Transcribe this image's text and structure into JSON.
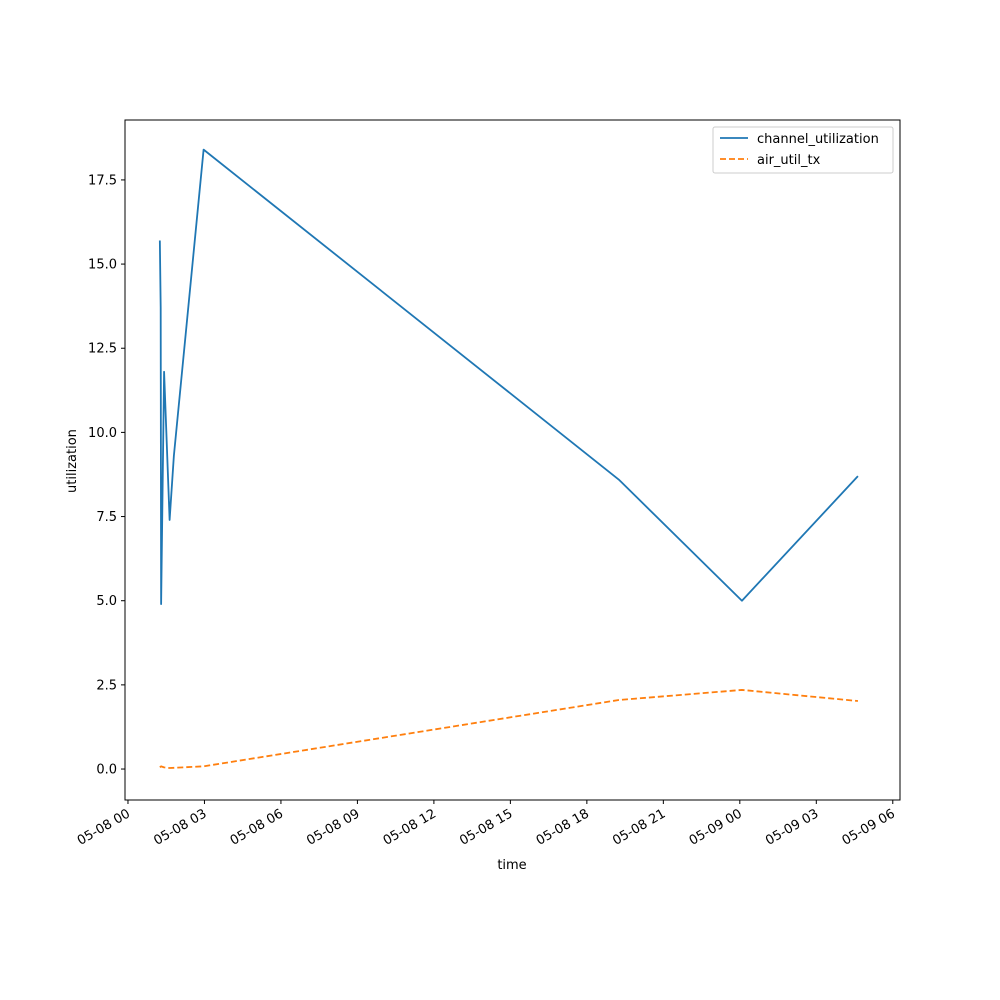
{
  "chart_data": {
    "type": "line",
    "title": "",
    "xlabel": "time",
    "ylabel": "utilization",
    "grid": false,
    "legend_position": "top-right",
    "xlim": [
      "2025-05-07T23:53:00",
      "2025-05-09T06:17:00"
    ],
    "ylim": [
      -0.92,
      19.28
    ],
    "x_ticks": [
      {
        "t": "2025-05-08T00:00",
        "label": "05-08 00"
      },
      {
        "t": "2025-05-08T03:00",
        "label": "05-08 03"
      },
      {
        "t": "2025-05-08T06:00",
        "label": "05-08 06"
      },
      {
        "t": "2025-05-08T09:00",
        "label": "05-08 09"
      },
      {
        "t": "2025-05-08T12:00",
        "label": "05-08 12"
      },
      {
        "t": "2025-05-08T15:00",
        "label": "05-08 15"
      },
      {
        "t": "2025-05-08T18:00",
        "label": "05-08 18"
      },
      {
        "t": "2025-05-08T21:00",
        "label": "05-08 21"
      },
      {
        "t": "2025-05-09T00:00",
        "label": "05-09 00"
      },
      {
        "t": "2025-05-09T03:00",
        "label": "05-09 03"
      },
      {
        "t": "2025-05-09T06:00",
        "label": "05-09 06"
      }
    ],
    "y_ticks": [
      {
        "v": 0.0,
        "label": "0.0"
      },
      {
        "v": 2.5,
        "label": "2.5"
      },
      {
        "v": 5.0,
        "label": "5.0"
      },
      {
        "v": 7.5,
        "label": "7.5"
      },
      {
        "v": 10.0,
        "label": "10.0"
      },
      {
        "v": 12.5,
        "label": "12.5"
      },
      {
        "v": 15.0,
        "label": "15.0"
      },
      {
        "v": 17.5,
        "label": "17.5"
      }
    ],
    "series": [
      {
        "name": "channel_utilization",
        "color": "#1f77b4",
        "dash": "solid",
        "points": [
          {
            "t": "2025-05-08T01:15",
            "y": 15.7
          },
          {
            "t": "2025-05-08T01:17",
            "y": 13.7
          },
          {
            "t": "2025-05-08T01:18",
            "y": 4.9
          },
          {
            "t": "2025-05-08T01:25",
            "y": 11.8
          },
          {
            "t": "2025-05-08T01:38",
            "y": 7.4
          },
          {
            "t": "2025-05-08T01:48",
            "y": 9.3
          },
          {
            "t": "2025-05-08T02:58",
            "y": 18.4
          },
          {
            "t": "2025-05-08T19:15",
            "y": 8.6
          },
          {
            "t": "2025-05-09T00:05",
            "y": 5.0
          },
          {
            "t": "2025-05-09T04:38",
            "y": 8.7
          }
        ]
      },
      {
        "name": "air_util_tx",
        "color": "#ff7f0e",
        "dash": "dashed",
        "points": [
          {
            "t": "2025-05-08T01:15",
            "y": 0.05
          },
          {
            "t": "2025-05-08T01:18",
            "y": 0.08
          },
          {
            "t": "2025-05-08T01:25",
            "y": 0.05
          },
          {
            "t": "2025-05-08T01:38",
            "y": 0.03
          },
          {
            "t": "2025-05-08T02:58",
            "y": 0.08
          },
          {
            "t": "2025-05-08T19:15",
            "y": 2.05
          },
          {
            "t": "2025-05-09T00:05",
            "y": 2.35
          },
          {
            "t": "2025-05-09T04:38",
            "y": 2.02
          }
        ]
      }
    ]
  }
}
